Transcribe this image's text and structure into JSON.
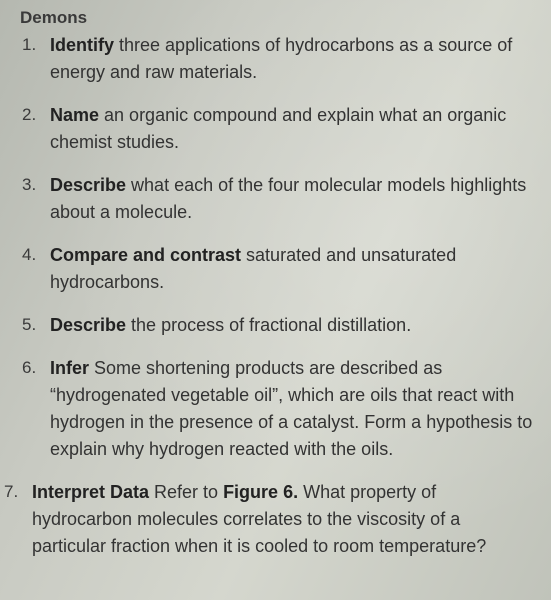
{
  "heading_fragment": "Demons",
  "items": [
    {
      "verb": "Identify",
      "text_after": " three applications of hydrocarbons as a source of energy and raw materials."
    },
    {
      "verb": "Name",
      "text_after": " an organic compound and explain what an organic chemist studies."
    },
    {
      "verb": "Describe",
      "text_after": " what each of the four molecular models highlights about a molecule."
    },
    {
      "verb": "Compare and contrast",
      "text_after": " saturated and unsaturated hydrocarbons."
    },
    {
      "verb": "Describe",
      "text_after": " the process of fractional distillation."
    },
    {
      "verb": "Infer",
      "text_after": " Some shortening products are described as “hydrogenated vegetable oil”, which are oils that react with hydrogen in the presence of a catalyst. Form a hypothesis to explain why hydrogen reacted with the oils."
    },
    {
      "verb": "Interpret Data",
      "mid": " Refer to ",
      "ref": "Figure 6.",
      "text_after": " What property of hydrocarbon molecules correlates to the viscosity of a particular fraction when it is cooled to room temperature?"
    }
  ]
}
